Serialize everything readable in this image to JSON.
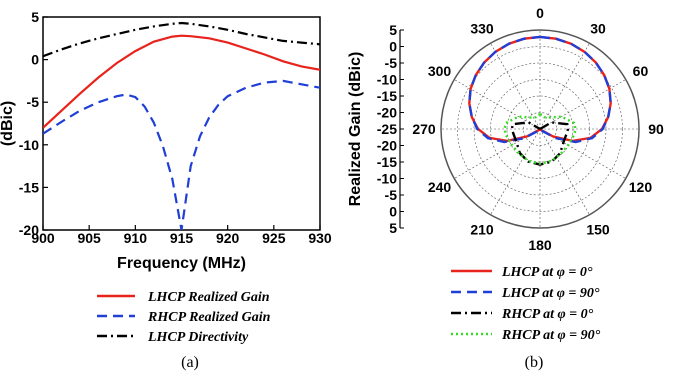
{
  "chart_data": [
    {
      "type": "line",
      "panel_label": "(a)",
      "xlabel": "Frequency (MHz)",
      "ylabel": "(dBic)",
      "xlim": [
        900,
        930
      ],
      "ylim": [
        -20,
        5
      ],
      "xticks": [
        900,
        905,
        910,
        915,
        920,
        925,
        930
      ],
      "yticks": [
        5,
        0,
        -5,
        -10,
        -15,
        -20
      ],
      "grid": false,
      "legend_position": "below",
      "series": [
        {
          "name": "LHCP Realized Gain",
          "color": "#e8231b",
          "dash": "solid",
          "x": [
            900,
            902,
            904,
            906,
            908,
            910,
            912,
            914,
            915,
            916,
            918,
            920,
            922,
            924,
            926,
            928,
            930
          ],
          "y": [
            -8,
            -6,
            -4,
            -2.1,
            -0.4,
            1.0,
            2.1,
            2.7,
            2.8,
            2.75,
            2.5,
            2.0,
            1.3,
            0.6,
            -0.2,
            -0.8,
            -1.2
          ]
        },
        {
          "name": "RHCP Realized Gain",
          "color": "#1f3fd6",
          "dash": "dashed",
          "x": [
            900,
            902,
            904,
            906,
            908,
            909,
            910,
            911,
            912,
            913,
            914,
            915,
            916,
            917,
            918,
            919,
            920,
            922,
            924,
            926,
            928,
            930
          ],
          "y": [
            -8.7,
            -7.3,
            -6.0,
            -5.0,
            -4.3,
            -4.1,
            -4.4,
            -5.5,
            -7.4,
            -10.2,
            -14.0,
            -20,
            -12.5,
            -9.0,
            -6.8,
            -5.3,
            -4.3,
            -3.3,
            -2.7,
            -2.5,
            -2.9,
            -3.3
          ]
        },
        {
          "name": "LHCP Directivity",
          "color": "#000000",
          "dash": "dashdot",
          "x": [
            900,
            902,
            904,
            906,
            908,
            910,
            912,
            914,
            915,
            916,
            918,
            920,
            922,
            924,
            926,
            928,
            930
          ],
          "y": [
            0.4,
            1.2,
            1.9,
            2.5,
            3.0,
            3.5,
            3.9,
            4.2,
            4.3,
            4.2,
            3.9,
            3.5,
            3.0,
            2.6,
            2.2,
            2.0,
            1.8
          ]
        }
      ]
    },
    {
      "type": "polar",
      "panel_label": "(b)",
      "ylabel": "Realized Gain (dBic)",
      "radial_ticks": [
        5,
        0,
        -5,
        -10,
        -15,
        -20,
        -25
      ],
      "rlim": [
        -25,
        5
      ],
      "angle_ticks": [
        0,
        30,
        60,
        90,
        120,
        150,
        180,
        210,
        240,
        270,
        300,
        330
      ],
      "grid": true,
      "legend_position": "below",
      "series": [
        {
          "name": "LHCP at φ = 0°",
          "color": "#e8231b",
          "dash": "solid",
          "theta": [
            0,
            10,
            20,
            30,
            40,
            50,
            60,
            70,
            80,
            90,
            100,
            110,
            120,
            130,
            140,
            150,
            160,
            170,
            180,
            190,
            200,
            210,
            220,
            230,
            240,
            250,
            260,
            270,
            280,
            290,
            300,
            310,
            320,
            330,
            340,
            350,
            360
          ],
          "r": [
            2.9,
            2.8,
            2.5,
            2.0,
            1.3,
            0.4,
            -0.7,
            -2.2,
            -4.0,
            -6.2,
            -9.5,
            -14.5,
            -20.5,
            -24.5,
            -25,
            -25,
            -25,
            -25,
            -25,
            -25,
            -25,
            -25,
            -25,
            -24.5,
            -20.5,
            -14.5,
            -9.5,
            -6.2,
            -4.0,
            -2.2,
            -0.7,
            0.4,
            1.3,
            2.0,
            2.5,
            2.8,
            2.9
          ]
        },
        {
          "name": "LHCP at φ = 90°",
          "color": "#1f3fd6",
          "dash": "dashed",
          "theta": [
            0,
            10,
            20,
            30,
            40,
            50,
            60,
            70,
            80,
            90,
            100,
            110,
            120,
            130,
            140,
            150,
            160,
            170,
            180,
            190,
            200,
            210,
            220,
            230,
            240,
            250,
            260,
            270,
            280,
            290,
            300,
            310,
            320,
            330,
            340,
            350,
            360
          ],
          "r": [
            2.9,
            2.8,
            2.5,
            2.0,
            1.3,
            0.4,
            -0.7,
            -2.2,
            -4.0,
            -6.0,
            -9.0,
            -13.5,
            -19.5,
            -24.0,
            -25,
            -25,
            -25,
            -25,
            -25,
            -25,
            -25,
            -25,
            -25,
            -24.0,
            -19.5,
            -13.5,
            -9.0,
            -6.0,
            -4.0,
            -2.2,
            -0.7,
            0.4,
            1.3,
            2.0,
            2.5,
            2.8,
            2.9
          ]
        },
        {
          "name": "RHCP at φ = 0°",
          "color": "#000000",
          "dash": "dashdot",
          "theta": [
            0,
            20,
            40,
            60,
            80,
            90,
            100,
            120,
            140,
            160,
            180,
            200,
            220,
            240,
            260,
            270,
            280,
            300,
            320,
            340,
            360
          ],
          "r": [
            -25,
            -25,
            -25,
            -21.0,
            -16.6,
            -16.5,
            -16.8,
            -16.8,
            -15.5,
            -14.5,
            -14.2,
            -14.5,
            -15.5,
            -16.8,
            -16.8,
            -16.5,
            -16.6,
            -21.0,
            -25,
            -25,
            -25
          ]
        },
        {
          "name": "RHCP at φ = 90°",
          "color": "#33dd22",
          "dash": "dotted",
          "theta": [
            0,
            10,
            20,
            40,
            60,
            80,
            90,
            100,
            120,
            140,
            160,
            180,
            200,
            220,
            240,
            260,
            270,
            280,
            300,
            320,
            340,
            350,
            360
          ],
          "r": [
            -20.5,
            -20.7,
            -21.2,
            -20.5,
            -17.5,
            -14.5,
            -14.2,
            -14.5,
            -15.2,
            -15.2,
            -14.7,
            -14.5,
            -14.7,
            -15.2,
            -15.2,
            -14.5,
            -14.2,
            -14.5,
            -17.5,
            -20.5,
            -21.2,
            -20.7,
            -20.5
          ]
        }
      ]
    }
  ]
}
